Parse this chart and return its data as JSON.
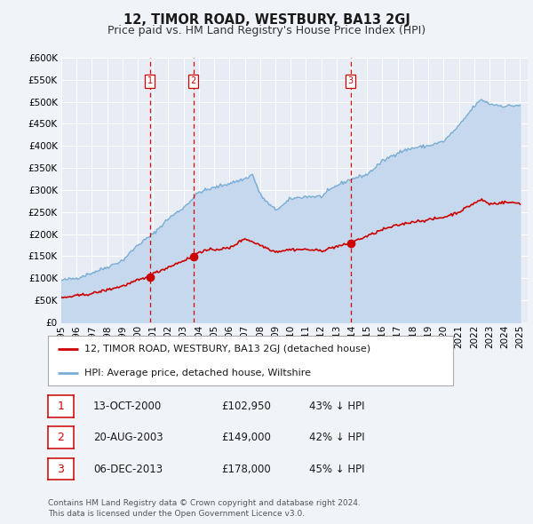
{
  "title": "12, TIMOR ROAD, WESTBURY, BA13 2GJ",
  "subtitle": "Price paid vs. HM Land Registry's House Price Index (HPI)",
  "ylim": [
    0,
    600000
  ],
  "yticks": [
    0,
    50000,
    100000,
    150000,
    200000,
    250000,
    300000,
    350000,
    400000,
    450000,
    500000,
    550000,
    600000
  ],
  "xlim_start": 1995.0,
  "xlim_end": 2025.5,
  "background_color": "#f0f4f8",
  "plot_bg_color": "#e8edf5",
  "grid_color": "#ffffff",
  "red_line_color": "#cc0000",
  "blue_line_color": "#7aadd4",
  "blue_fill_color": "#c5d8ed",
  "sale_marker_color": "#cc0000",
  "sale_vline_color": "#dd0000",
  "legend_label_red": "12, TIMOR ROAD, WESTBURY, BA13 2GJ (detached house)",
  "legend_label_blue": "HPI: Average price, detached house, Wiltshire",
  "sales": [
    {
      "num": 1,
      "date_num": 2000.79,
      "price": 102950,
      "label": "13-OCT-2000",
      "price_str": "£102,950",
      "pct": "43% ↓ HPI"
    },
    {
      "num": 2,
      "date_num": 2003.64,
      "price": 149000,
      "label": "20-AUG-2003",
      "price_str": "£149,000",
      "pct": "42% ↓ HPI"
    },
    {
      "num": 3,
      "date_num": 2013.93,
      "price": 178000,
      "label": "06-DEC-2013",
      "price_str": "£178,000",
      "pct": "45% ↓ HPI"
    }
  ],
  "footer_line1": "Contains HM Land Registry data © Crown copyright and database right 2024.",
  "footer_line2": "This data is licensed under the Open Government Licence v3.0.",
  "title_fontsize": 10.5,
  "subtitle_fontsize": 9,
  "tick_fontsize": 7.5,
  "legend_fontsize": 8,
  "table_fontsize": 8.5
}
